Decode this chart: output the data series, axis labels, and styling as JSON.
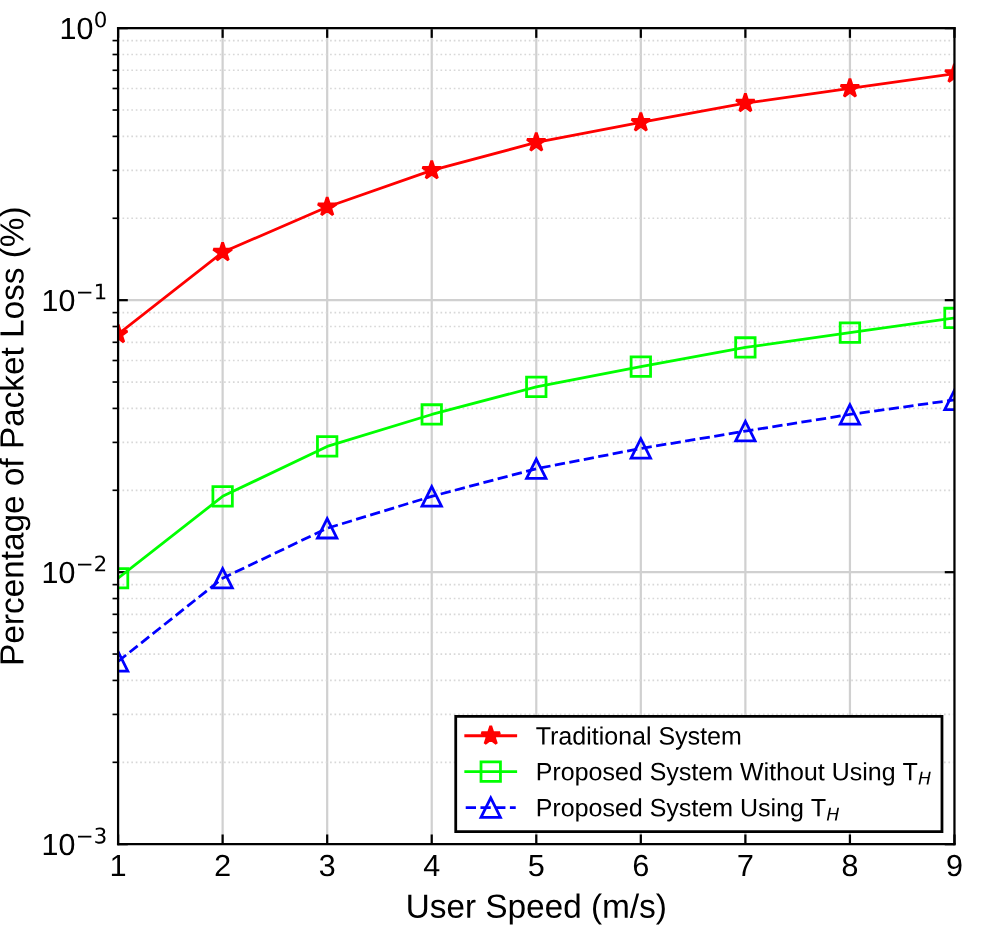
{
  "chart_data": {
    "type": "line",
    "xlabel": "User Speed (m/s)",
    "ylabel": "Percentage of Packet Loss (%)",
    "x": [
      1,
      2,
      3,
      4,
      5,
      6,
      7,
      8,
      9
    ],
    "series": [
      {
        "name": "Traditional System",
        "color": "#ff0000",
        "marker": "star",
        "line_style": "solid",
        "values": [
          0.075,
          0.15,
          0.22,
          0.3,
          0.38,
          0.45,
          0.53,
          0.6,
          0.68
        ]
      },
      {
        "name": "Proposed System Without Using T$_{H}$",
        "color": "#00ff00",
        "marker": "square",
        "line_style": "solid",
        "values": [
          0.0095,
          0.019,
          0.029,
          0.038,
          0.048,
          0.057,
          0.067,
          0.076,
          0.086
        ]
      },
      {
        "name": "Proposed System Using T$_{H}$",
        "color": "#0000ff",
        "marker": "triangle",
        "line_style": "dashed",
        "values": [
          0.0047,
          0.0095,
          0.0145,
          0.019,
          0.024,
          0.0285,
          0.033,
          0.038,
          0.043
        ]
      }
    ],
    "log": "y",
    "xlim": [
      1,
      9
    ],
    "ylim": [
      0.001,
      1
    ],
    "xticks": [
      1,
      2,
      3,
      4,
      5,
      6,
      7,
      8,
      9
    ],
    "yticks": [
      {
        "value": 0.001,
        "label": "10$^{−3}$"
      },
      {
        "value": 0.01,
        "label": "10$^{−2}$"
      },
      {
        "value": 0.1,
        "label": "10$^{−1}$"
      },
      {
        "value": 1,
        "label": "10$^{0}$"
      }
    ],
    "grid": true,
    "legend": "bottom right"
  }
}
